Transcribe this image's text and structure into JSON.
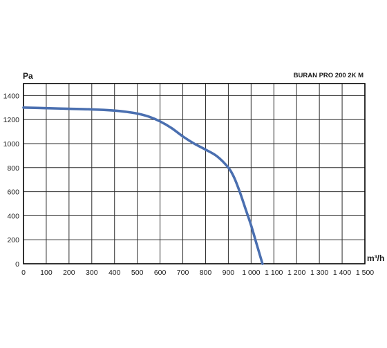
{
  "chart_data": {
    "type": "line",
    "title": "BURAN PRO 200 2K M",
    "ylabel": "Pa",
    "xlabel": "m³/h",
    "xlim": [
      0,
      1500
    ],
    "ylim": [
      0,
      1500
    ],
    "x_ticks": [
      0,
      100,
      200,
      300,
      400,
      500,
      600,
      700,
      800,
      900,
      1000,
      1100,
      1200,
      1300,
      1400,
      1500
    ],
    "x_tick_labels": [
      "0",
      "100",
      "200",
      "300",
      "400",
      "500",
      "600",
      "700",
      "800",
      "900",
      "1 000",
      "1 100",
      "1 200",
      "1 300",
      "1 400",
      "1 500"
    ],
    "y_ticks": [
      0,
      200,
      400,
      600,
      800,
      1000,
      1200,
      1400
    ],
    "y_tick_labels": [
      "0",
      "200",
      "400",
      "600",
      "800",
      "1000",
      "1200",
      "1400"
    ],
    "grid": true,
    "series": [
      {
        "color": "#4a6fb0",
        "x": [
          0,
          100,
          200,
          300,
          400,
          450,
          500,
          550,
          600,
          650,
          700,
          750,
          800,
          850,
          900,
          925,
          950,
          975,
          1000,
          1025,
          1050
        ],
        "y": [
          1300,
          1295,
          1290,
          1285,
          1275,
          1265,
          1250,
          1225,
          1185,
          1130,
          1060,
          1000,
          950,
          895,
          800,
          720,
          600,
          460,
          320,
          160,
          0
        ]
      }
    ]
  }
}
